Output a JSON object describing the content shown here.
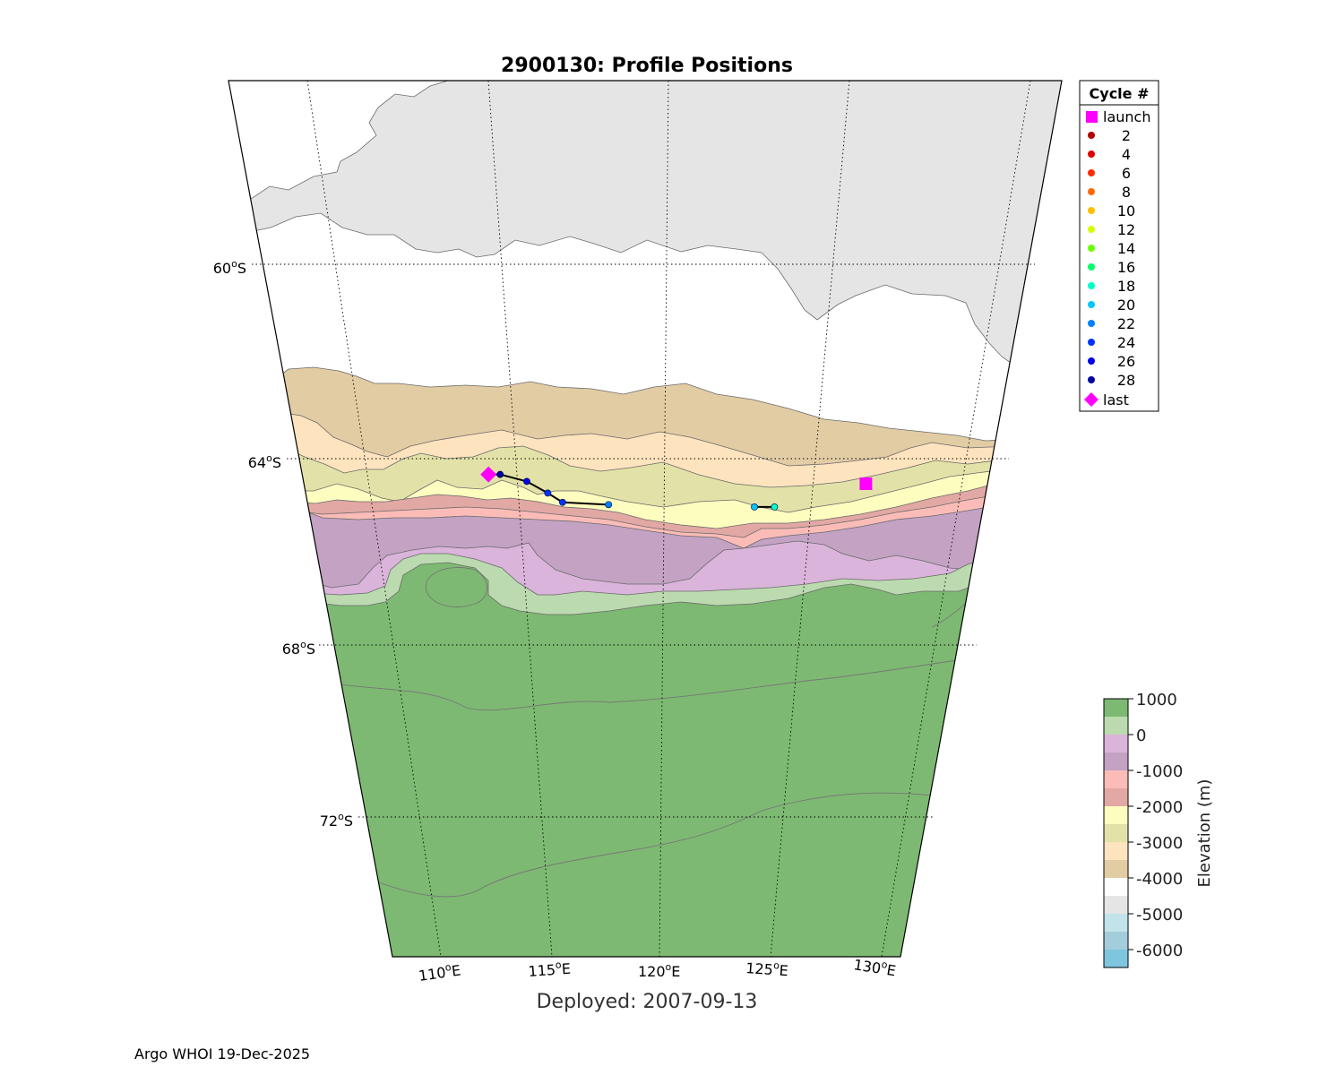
{
  "title": "2900130: Profile Positions",
  "deployed_label": "Deployed: 2007-09-13",
  "footer": "Argo WHOI 19-Dec-2025",
  "latitude_labels": [
    {
      "deg": "60",
      "hem": "S",
      "unit": "o"
    },
    {
      "deg": "64",
      "hem": "S",
      "unit": "o"
    },
    {
      "deg": "68",
      "hem": "S",
      "unit": "o"
    },
    {
      "deg": "72",
      "hem": "S",
      "unit": "o"
    }
  ],
  "longitude_labels": [
    {
      "deg": "110",
      "hem": "E",
      "unit": "o"
    },
    {
      "deg": "115",
      "hem": "E",
      "unit": "o"
    },
    {
      "deg": "120",
      "hem": "E",
      "unit": "o"
    },
    {
      "deg": "125",
      "hem": "E",
      "unit": "o"
    },
    {
      "deg": "130",
      "hem": "E",
      "unit": "o"
    }
  ],
  "legend": {
    "header": "Cycle #",
    "launch_label": "launch",
    "last_label": "last",
    "launch_color": "#ff00ff",
    "last_color": "#ff00ff",
    "cycles": [
      {
        "label": "2",
        "color": "#b30000"
      },
      {
        "label": "4",
        "color": "#e00000"
      },
      {
        "label": "6",
        "color": "#ff2a00"
      },
      {
        "label": "8",
        "color": "#ff6a00"
      },
      {
        "label": "10",
        "color": "#ffbf00"
      },
      {
        "label": "12",
        "color": "#d4ff00"
      },
      {
        "label": "14",
        "color": "#6aff00"
      },
      {
        "label": "16",
        "color": "#00ff6a"
      },
      {
        "label": "18",
        "color": "#00ffc8"
      },
      {
        "label": "20",
        "color": "#00c8ff"
      },
      {
        "label": "22",
        "color": "#0080ff"
      },
      {
        "label": "24",
        "color": "#0033ff"
      },
      {
        "label": "26",
        "color": "#0000e6"
      },
      {
        "label": "28",
        "color": "#00009e"
      }
    ]
  },
  "colorbar": {
    "label": "Elevation (m)",
    "tick_labels": [
      "1000",
      "0",
      "-1000",
      "-2000",
      "-3000",
      "-4000",
      "-5000",
      "-6000"
    ],
    "colors": [
      "#7db972",
      "#bcdab0",
      "#dab4da",
      "#c3a2c3",
      "#fbbcb8",
      "#e2a8a4",
      "#fdfdc0",
      "#e2e2a8",
      "#fde3be",
      "#e2cca4",
      "#ffffff",
      "#e5e5e5",
      "#c3e3ea",
      "#a3cddb",
      "#7ec6de"
    ]
  },
  "track": {
    "launch": {
      "lon": 127.3,
      "lat": -64.6
    },
    "last": {
      "lon": 114.3,
      "lat": -64.4
    },
    "profiles": [
      {
        "lon": 114.7,
        "lat": -64.4,
        "color": "#00009e"
      },
      {
        "lon": 115.6,
        "lat": -64.55,
        "color": "#0000e6"
      },
      {
        "lon": 116.3,
        "lat": -64.8,
        "color": "#0033ff"
      },
      {
        "lon": 116.8,
        "lat": -65.0,
        "color": "#0033ff"
      },
      {
        "lon": 118.4,
        "lat": -65.05,
        "color": "#0080ff"
      },
      {
        "lon": 123.5,
        "lat": -65.1,
        "color": "#00c8ff"
      },
      {
        "lon": 124.2,
        "lat": -65.1,
        "color": "#00ffc8"
      }
    ]
  }
}
